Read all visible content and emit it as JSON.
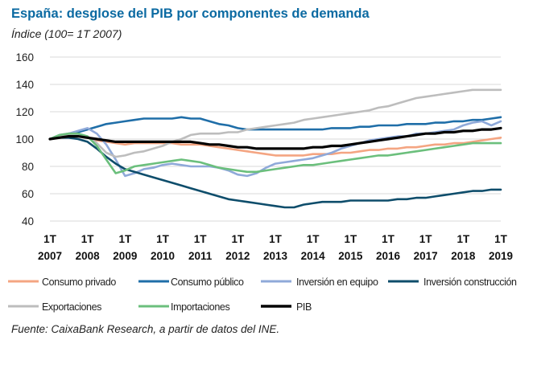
{
  "title": "España: desglose del PIB por componentes de demanda",
  "subtitle": "Índice (100= 1T 2007)",
  "source": "Fuente: CaixaBank Research, a partir de datos del INE.",
  "chart_data": {
    "type": "line",
    "x_start_label": "1T 2007",
    "x_end_label": "1T 2019",
    "x_quarter_count": 49,
    "xticks": [
      {
        "q": "1T",
        "year": "2007"
      },
      {
        "q": "1T",
        "year": "2008"
      },
      {
        "q": "1T",
        "year": "2009"
      },
      {
        "q": "1T",
        "year": "2010"
      },
      {
        "q": "1T",
        "year": "2011"
      },
      {
        "q": "1T",
        "year": "2012"
      },
      {
        "q": "1T",
        "year": "2013"
      },
      {
        "q": "1T",
        "year": "2014"
      },
      {
        "q": "1T",
        "year": "2015"
      },
      {
        "q": "1T",
        "year": "2016"
      },
      {
        "q": "1T",
        "year": "2017"
      },
      {
        "q": "1T",
        "year": "2018"
      },
      {
        "q": "1T",
        "year": "2019"
      }
    ],
    "ylim": [
      40,
      160
    ],
    "yticks": [
      40,
      60,
      80,
      100,
      120,
      140,
      160
    ],
    "grid": "horizontal",
    "legend_position": "bottom",
    "series": [
      {
        "name": "Consumo privado",
        "color": "#f4a582",
        "values": [
          100,
          101,
          102,
          102,
          101,
          99,
          98,
          97,
          96,
          97,
          97,
          97,
          97,
          97,
          96,
          96,
          96,
          95,
          94,
          93,
          92,
          91,
          90,
          89,
          88,
          88,
          88,
          88,
          89,
          89,
          89,
          90,
          90,
          91,
          92,
          92,
          93,
          93,
          94,
          94,
          95,
          96,
          96,
          97,
          97,
          98,
          99,
          100,
          101
        ]
      },
      {
        "name": "Consumo público",
        "color": "#1f6ea8",
        "values": [
          100,
          102,
          104,
          105,
          107,
          109,
          111,
          112,
          113,
          114,
          115,
          115,
          115,
          115,
          116,
          115,
          115,
          113,
          111,
          110,
          108,
          107,
          107,
          107,
          107,
          107,
          107,
          107,
          107,
          107,
          108,
          108,
          108,
          109,
          109,
          110,
          110,
          110,
          111,
          111,
          111,
          112,
          112,
          113,
          113,
          114,
          114,
          115,
          116
        ]
      },
      {
        "name": "Inversión en equipo",
        "color": "#8fa9d9",
        "values": [
          100,
          103,
          104,
          106,
          108,
          104,
          96,
          85,
          73,
          75,
          78,
          79,
          81,
          82,
          81,
          80,
          80,
          80,
          79,
          77,
          74,
          73,
          75,
          79,
          82,
          83,
          84,
          85,
          86,
          88,
          90,
          93,
          95,
          97,
          99,
          100,
          101,
          102,
          102,
          104,
          104,
          105,
          106,
          107,
          110,
          112,
          113,
          110,
          113
        ]
      },
      {
        "name": "Inversión construcción",
        "color": "#0e4d6b",
        "values": [
          100,
          101,
          101,
          100,
          98,
          93,
          87,
          82,
          78,
          76,
          74,
          72,
          70,
          68,
          66,
          64,
          62,
          60,
          58,
          56,
          55,
          54,
          53,
          52,
          51,
          50,
          50,
          52,
          53,
          54,
          54,
          54,
          55,
          55,
          55,
          55,
          55,
          56,
          56,
          57,
          57,
          58,
          59,
          60,
          61,
          62,
          62,
          63,
          63
        ]
      },
      {
        "name": "Exportaciones",
        "color": "#bdbdbd",
        "values": [
          100,
          102,
          103,
          103,
          102,
          97,
          90,
          87,
          88,
          90,
          91,
          93,
          95,
          98,
          100,
          103,
          104,
          104,
          104,
          105,
          105,
          107,
          108,
          109,
          110,
          111,
          112,
          114,
          115,
          116,
          117,
          118,
          119,
          120,
          121,
          123,
          124,
          126,
          128,
          130,
          131,
          132,
          133,
          134,
          135,
          136,
          136,
          136,
          136
        ]
      },
      {
        "name": "Importaciones",
        "color": "#6bbf7c",
        "values": [
          100,
          103,
          104,
          104,
          102,
          95,
          85,
          75,
          77,
          80,
          81,
          82,
          83,
          84,
          85,
          84,
          83,
          81,
          79,
          78,
          77,
          76,
          76,
          77,
          78,
          79,
          80,
          81,
          81,
          82,
          83,
          84,
          85,
          86,
          87,
          88,
          88,
          89,
          90,
          91,
          92,
          93,
          94,
          95,
          96,
          97,
          97,
          97,
          97
        ]
      },
      {
        "name": "PIB",
        "color": "#000000",
        "values": [
          100,
          101,
          102,
          102,
          101,
          100,
          99,
          98,
          98,
          98,
          98,
          98,
          98,
          98,
          98,
          98,
          97,
          96,
          96,
          95,
          94,
          94,
          93,
          93,
          93,
          93,
          93,
          93,
          94,
          94,
          95,
          95,
          96,
          97,
          98,
          99,
          100,
          101,
          102,
          103,
          104,
          104,
          105,
          105,
          106,
          106,
          107,
          107,
          108
        ]
      }
    ]
  }
}
